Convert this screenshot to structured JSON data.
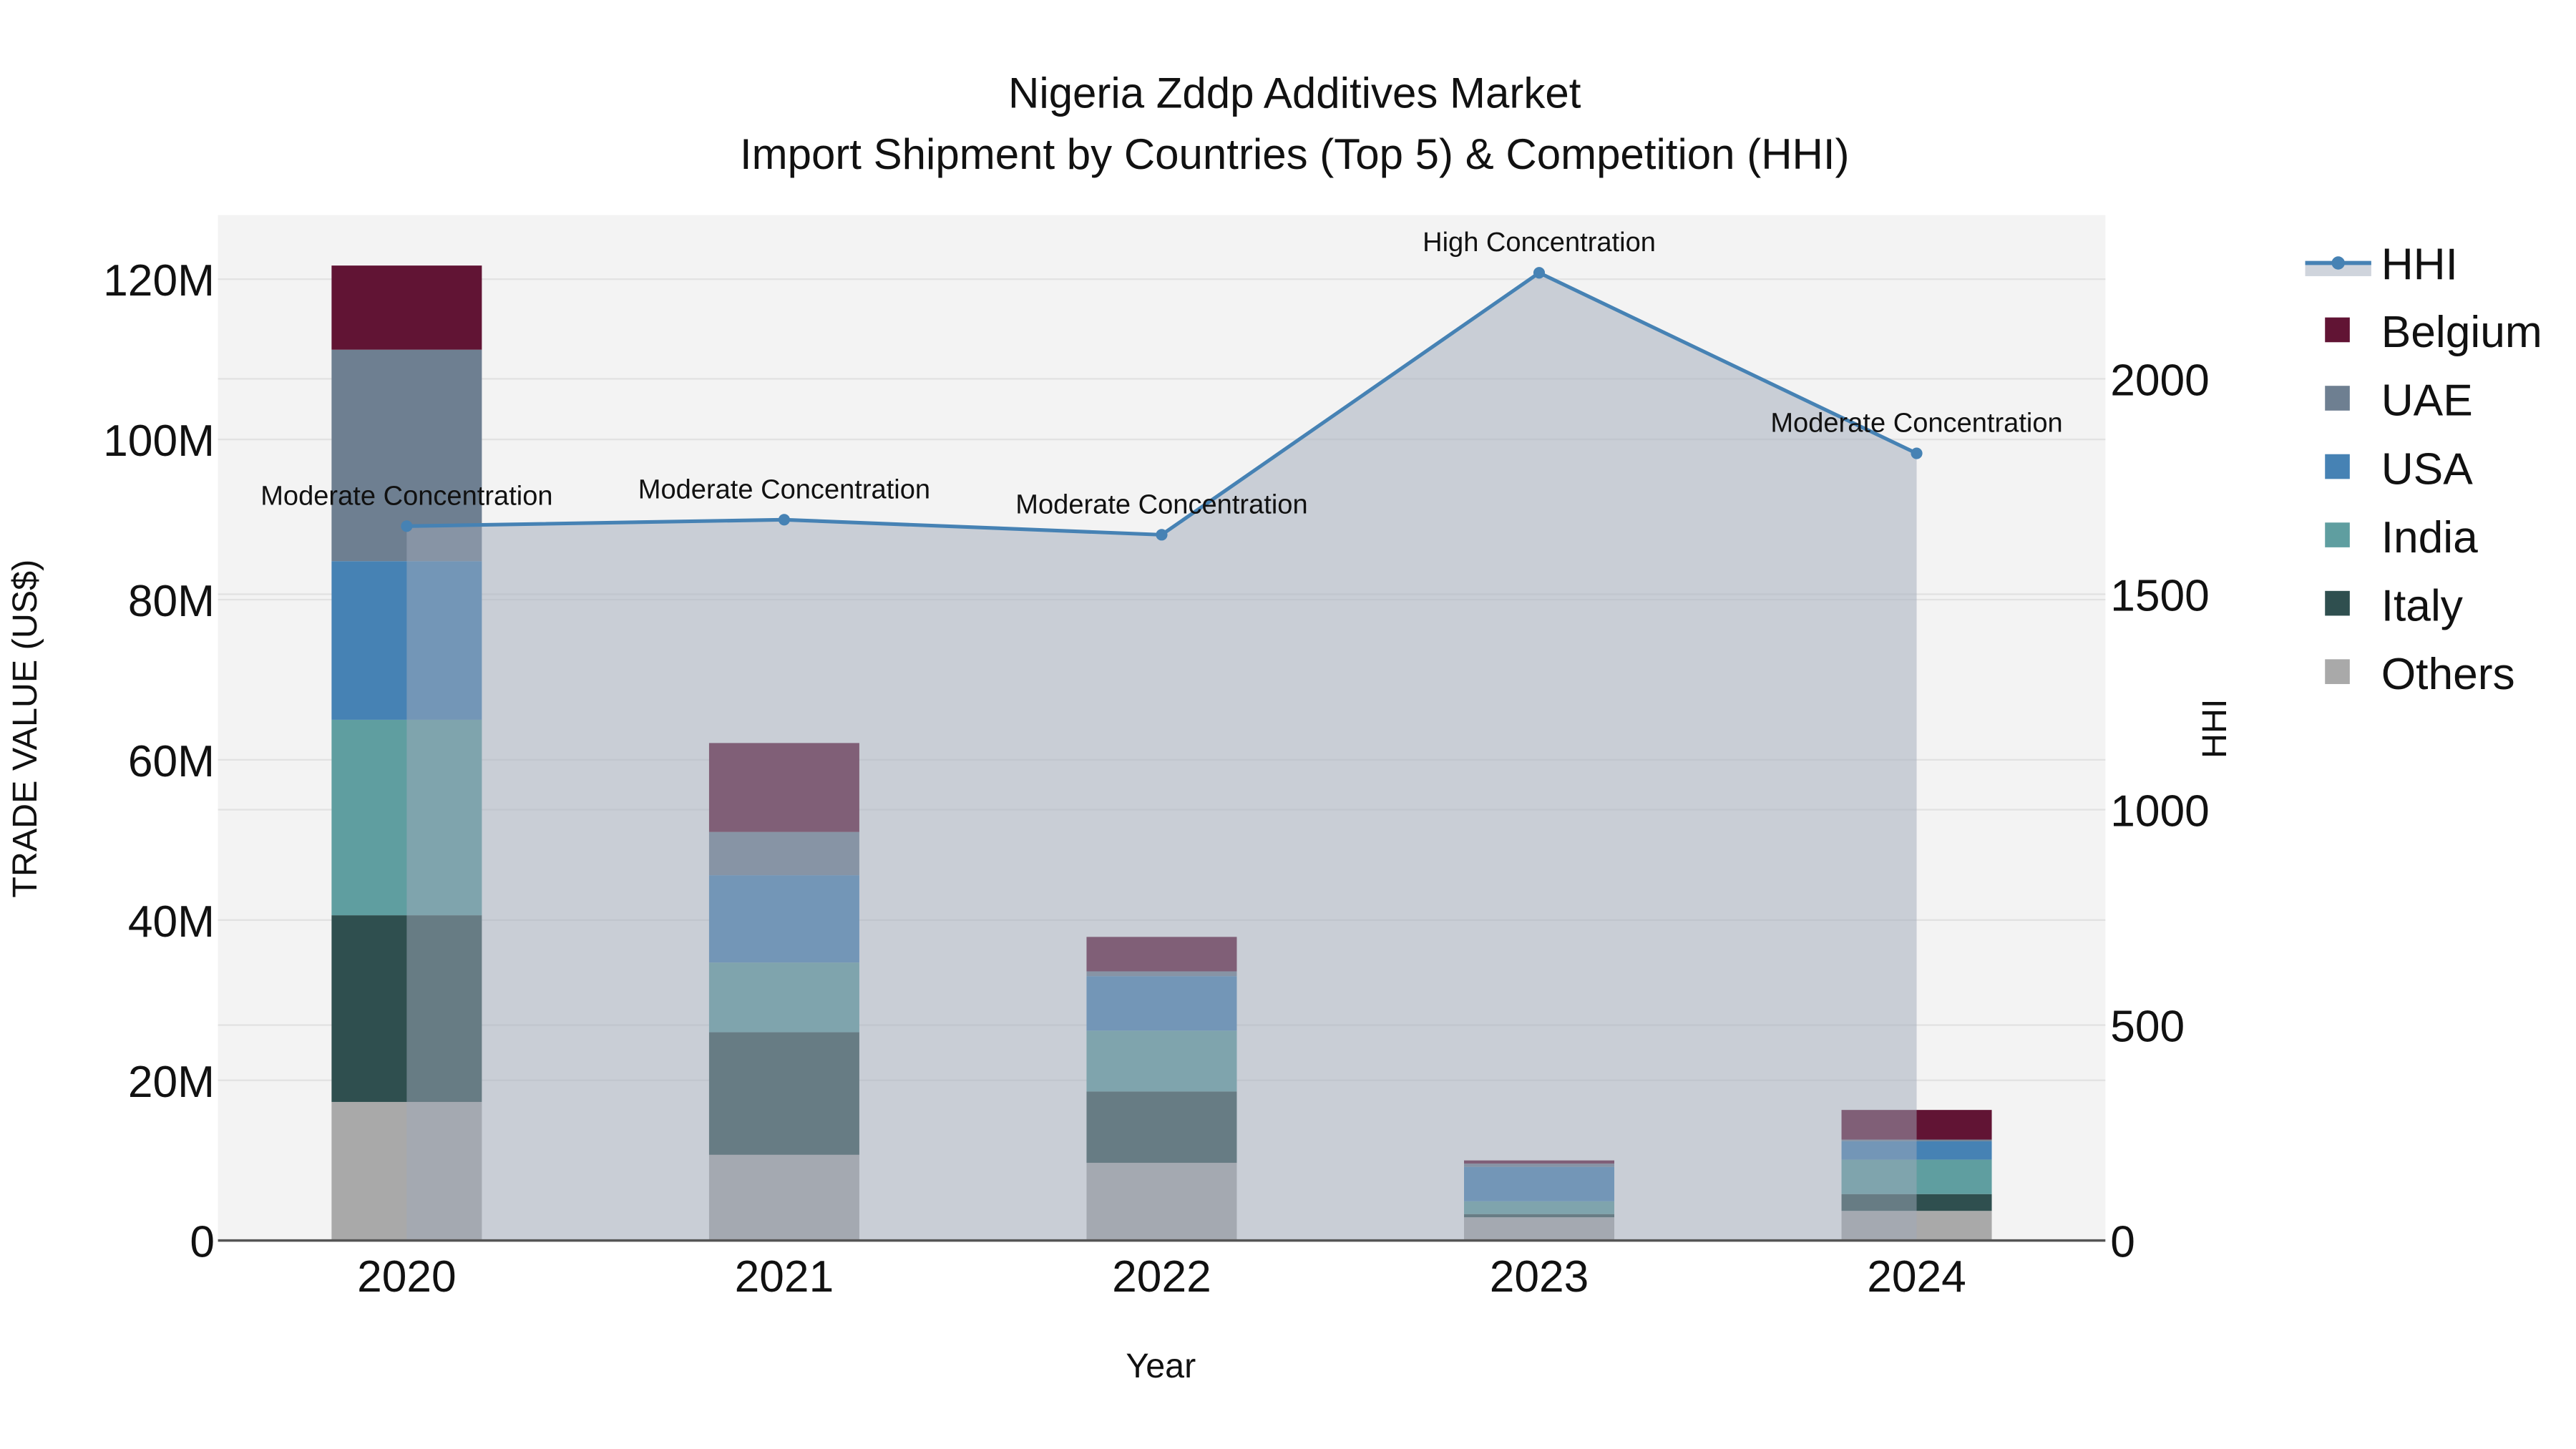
{
  "chart_data": {
    "type": "bar",
    "title": "Nigeria Zddp Additives Market",
    "subtitle": "Import Shipment by Countries (Top 5) & Competition (HHI)",
    "xlabel": "Year",
    "ylabel": "TRADE VALUE (US$)",
    "y2label": "HHI",
    "categories": [
      "2020",
      "2021",
      "2022",
      "2023",
      "2024"
    ],
    "ylim": [
      0,
      128
    ],
    "y_ticks": [
      0,
      20,
      40,
      60,
      80,
      100,
      120
    ],
    "y_tick_labels": [
      "0",
      "20M",
      "40M",
      "60M",
      "80M",
      "100M",
      "120M"
    ],
    "y2lim": [
      0,
      2380
    ],
    "y2_ticks": [
      0,
      500,
      1000,
      1500,
      2000
    ],
    "y2_tick_labels": [
      "0",
      "500",
      "1000",
      "1500",
      "2000"
    ],
    "units": "million US$",
    "stack_order": [
      "Others",
      "Italy",
      "India",
      "USA",
      "UAE",
      "Belgium"
    ],
    "series": [
      {
        "name": "Others",
        "color": "#a9a9a9",
        "values": [
          17.3,
          10.7,
          9.7,
          2.9,
          3.7
        ]
      },
      {
        "name": "Italy",
        "color": "#2f4f4f",
        "values": [
          23.3,
          15.3,
          8.9,
          0.4,
          2.1
        ]
      },
      {
        "name": "India",
        "color": "#5f9ea0",
        "values": [
          24.4,
          8.7,
          7.6,
          1.6,
          4.3
        ]
      },
      {
        "name": "USA",
        "color": "#4682b4",
        "values": [
          19.8,
          10.9,
          6.8,
          4.3,
          2.3
        ]
      },
      {
        "name": "UAE",
        "color": "#6e7f91",
        "values": [
          26.4,
          5.4,
          0.6,
          0.4,
          0.2
        ]
      },
      {
        "name": "Belgium",
        "color": "#611434",
        "values": [
          10.5,
          11.1,
          4.3,
          0.4,
          3.7
        ]
      }
    ],
    "hhi": {
      "name": "HHI",
      "color": "#4682b4",
      "values": [
        1658,
        1673,
        1638,
        2246,
        1827
      ],
      "annotations": [
        "Moderate Concentration",
        "Moderate Concentration",
        "Moderate Concentration",
        "High Concentration",
        "Moderate Concentration"
      ]
    },
    "legend": [
      "HHI",
      "Belgium",
      "UAE",
      "USA",
      "India",
      "Italy",
      "Others"
    ],
    "legend_position": "right",
    "grid": true
  }
}
